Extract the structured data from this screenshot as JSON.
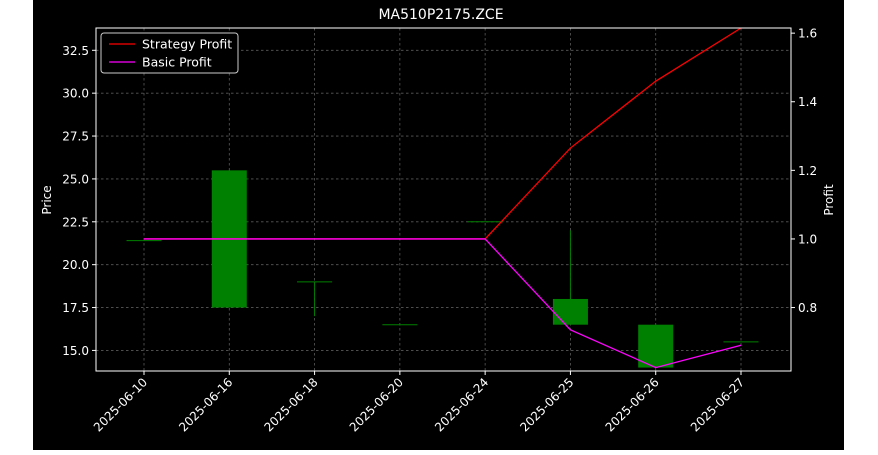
{
  "chart_data": {
    "type": "candlestick",
    "title": "MA510P2175.ZCE",
    "ylabel": "Price",
    "ylabel_right": "Profit",
    "categories": [
      "2025-06-10",
      "2025-06-16",
      "2025-06-18",
      "2025-06-20",
      "2025-06-24",
      "2025-06-25",
      "2025-06-26",
      "2025-06-27"
    ],
    "ylim": [
      13.8,
      33.8
    ],
    "ylim_right": [
      0.615,
      1.615
    ],
    "yticks": [
      15.0,
      17.5,
      20.0,
      22.5,
      25.0,
      27.5,
      30.0,
      32.5
    ],
    "yticks_right": [
      0.8,
      1.0,
      1.2,
      1.4,
      1.6
    ],
    "grid": true,
    "legend_position": "top-left",
    "candles": [
      {
        "date": "2025-06-10",
        "open": 21.4,
        "high": 21.4,
        "low": 21.4,
        "close": 21.4
      },
      {
        "date": "2025-06-16",
        "open": 17.5,
        "high": 25.5,
        "low": 17.5,
        "close": 25.5
      },
      {
        "date": "2025-06-18",
        "open": 19.0,
        "high": 19.0,
        "low": 17.0,
        "close": 19.0
      },
      {
        "date": "2025-06-20",
        "open": 16.5,
        "high": 16.5,
        "low": 16.5,
        "close": 16.5
      },
      {
        "date": "2025-06-24",
        "open": 22.5,
        "high": 22.5,
        "low": 22.5,
        "close": 22.5
      },
      {
        "date": "2025-06-25",
        "open": 16.5,
        "high": 22.0,
        "low": 16.5,
        "close": 18.0
      },
      {
        "date": "2025-06-26",
        "open": 14.0,
        "high": 16.5,
        "low": 14.0,
        "close": 16.5
      },
      {
        "date": "2025-06-27",
        "open": 15.5,
        "high": 15.5,
        "low": 15.5,
        "close": 15.5
      }
    ],
    "series": [
      {
        "name": "Strategy Profit",
        "color": "#ff0000",
        "values": [
          1.0,
          1.0,
          1.0,
          1.0,
          1.0,
          1.265,
          1.46,
          1.615
        ]
      },
      {
        "name": "Basic Profit",
        "color": "#ff00ff",
        "values": [
          1.0,
          1.0,
          1.0,
          1.0,
          1.0,
          0.735,
          0.625,
          0.69
        ]
      }
    ],
    "colors": {
      "up": "#008000",
      "down": "#ff0000",
      "background": "#000000",
      "axes": "#ffffff",
      "grid": "#808080"
    }
  }
}
